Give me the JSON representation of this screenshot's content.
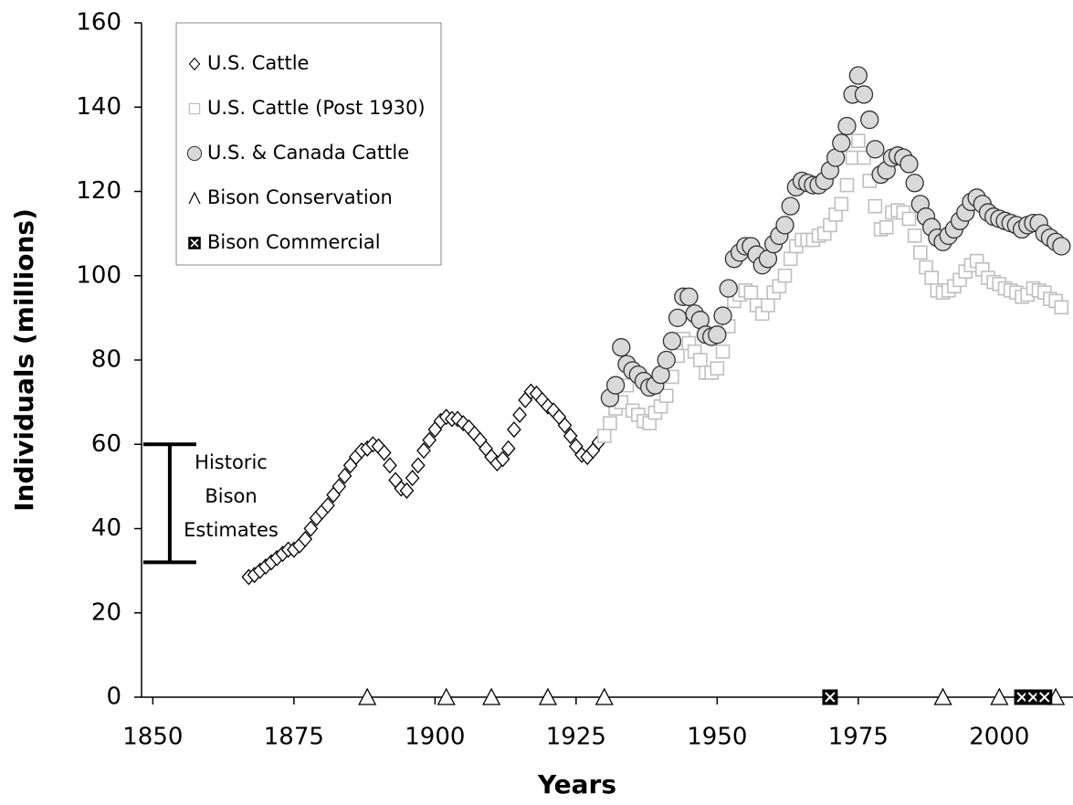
{
  "chart_data": {
    "type": "scatter",
    "x_label": "Years",
    "y_label": "Individuals  (millions)",
    "xlim": [
      1848,
      2012
    ],
    "xticks": [
      1850,
      1875,
      1900,
      1925,
      1950,
      1975,
      2000
    ],
    "ylim": [
      0,
      160
    ],
    "yticks": [
      0,
      20,
      40,
      60,
      80,
      100,
      120,
      140,
      160
    ],
    "legend": "top-left",
    "series": [
      {
        "name": "U.S. Cattle",
        "marker": "diamond",
        "color": "#000000",
        "fill": "#ffffff",
        "x": [
          1867,
          1868,
          1869,
          1870,
          1871,
          1872,
          1873,
          1874,
          1875,
          1876,
          1877,
          1878,
          1879,
          1880,
          1881,
          1882,
          1883,
          1884,
          1885,
          1886,
          1887,
          1888,
          1889,
          1890,
          1891,
          1892,
          1893,
          1894,
          1895,
          1896,
          1897,
          1898,
          1899,
          1900,
          1901,
          1902,
          1903,
          1904,
          1905,
          1906,
          1907,
          1908,
          1909,
          1910,
          1911,
          1912,
          1913,
          1914,
          1915,
          1916,
          1917,
          1918,
          1919,
          1920,
          1921,
          1922,
          1923,
          1924,
          1925,
          1926,
          1927,
          1928,
          1929
        ],
        "values": [
          28.5,
          29,
          30,
          31,
          32,
          33,
          34,
          35,
          35,
          36,
          37.5,
          40,
          42.5,
          44,
          45.5,
          48,
          50,
          52.5,
          55,
          57,
          58.5,
          59,
          60,
          59.5,
          58,
          55,
          51.5,
          49.5,
          49,
          52,
          55,
          58.5,
          61,
          63.5,
          65.5,
          66.5,
          66,
          66,
          65,
          64,
          62.5,
          61,
          59,
          57,
          55.5,
          56.5,
          59,
          63.5,
          67,
          70.5,
          72.5,
          72,
          70.5,
          69,
          68,
          66.5,
          64.5,
          62,
          59.5,
          57.5,
          57,
          58.5,
          60.5
        ]
      },
      {
        "name": "U.S. Cattle (Post 1930)",
        "marker": "square",
        "color": "#bfbfbf",
        "fill": "#ffffff",
        "x": [
          1930,
          1931,
          1932,
          1933,
          1934,
          1935,
          1936,
          1937,
          1938,
          1939,
          1940,
          1941,
          1942,
          1943,
          1944,
          1945,
          1946,
          1947,
          1948,
          1949,
          1950,
          1951,
          1952,
          1953,
          1954,
          1955,
          1956,
          1957,
          1958,
          1959,
          1960,
          1961,
          1962,
          1963,
          1964,
          1965,
          1966,
          1967,
          1968,
          1969,
          1970,
          1971,
          1972,
          1973,
          1974,
          1975,
          1976,
          1977,
          1978,
          1979,
          1980,
          1981,
          1982,
          1983,
          1984,
          1985,
          1986,
          1987,
          1988,
          1989,
          1990,
          1991,
          1992,
          1993,
          1994,
          1995,
          1996,
          1997,
          1998,
          1999,
          2000,
          2001,
          2002,
          2003,
          2004,
          2005,
          2006,
          2007,
          2008,
          2009,
          2010,
          2011
        ],
        "values": [
          62,
          65,
          68.5,
          70,
          74,
          68,
          67,
          65.5,
          65,
          67.5,
          69,
          71.5,
          76,
          81,
          85,
          84,
          82,
          80,
          77,
          77,
          78,
          82,
          88,
          94,
          95.5,
          96.5,
          96,
          93,
          91,
          93,
          96,
          97.5,
          100,
          104,
          107,
          108.5,
          108.5,
          108.5,
          109.5,
          110,
          112,
          114.5,
          117,
          121.5,
          128,
          132,
          128,
          122.5,
          116.5,
          111,
          111.5,
          115,
          115.5,
          115,
          113.5,
          109.5,
          105.5,
          102,
          99.5,
          96.5,
          96,
          96.5,
          97.5,
          99,
          101,
          102.5,
          103.5,
          101.5,
          99.5,
          98.5,
          98,
          97,
          96.5,
          96,
          95,
          95.5,
          97,
          96.5,
          96,
          94.5,
          94,
          92.5
        ]
      },
      {
        "name": "U.S. & Canada Cattle",
        "marker": "circle",
        "color": "#333333",
        "fill": "#d9d9d9",
        "x": [
          1931,
          1932,
          1933,
          1934,
          1935,
          1936,
          1937,
          1938,
          1939,
          1940,
          1941,
          1942,
          1943,
          1944,
          1945,
          1946,
          1947,
          1948,
          1949,
          1950,
          1951,
          1952,
          1953,
          1954,
          1955,
          1956,
          1957,
          1958,
          1959,
          1960,
          1961,
          1962,
          1963,
          1964,
          1965,
          1966,
          1967,
          1968,
          1969,
          1970,
          1971,
          1972,
          1973,
          1974,
          1975,
          1976,
          1977,
          1978,
          1979,
          1980,
          1981,
          1982,
          1983,
          1984,
          1985,
          1986,
          1987,
          1988,
          1989,
          1990,
          1991,
          1992,
          1993,
          1994,
          1995,
          1996,
          1997,
          1998,
          1999,
          2000,
          2001,
          2002,
          2003,
          2004,
          2005,
          2006,
          2007,
          2008,
          2009,
          2010,
          2011
        ],
        "values": [
          71,
          74,
          83,
          79,
          77.5,
          76.5,
          75,
          73.5,
          74,
          76.5,
          80,
          84.5,
          90,
          95,
          95,
          91,
          89.5,
          86,
          85.5,
          86,
          90.5,
          97,
          104,
          105.5,
          107,
          107,
          105,
          102.5,
          104,
          107.5,
          109.5,
          112,
          116.5,
          121,
          122.5,
          122,
          121.5,
          121.5,
          122.5,
          125,
          128,
          131.5,
          135.5,
          143,
          147.5,
          143,
          137,
          130,
          124,
          125,
          128,
          128.5,
          128,
          126.5,
          122,
          117,
          114,
          111.5,
          109,
          108,
          109.5,
          111,
          113,
          115,
          117.5,
          118.5,
          117,
          115,
          114,
          113.5,
          113,
          112.5,
          112,
          111,
          112,
          112.5,
          112.5,
          110,
          109,
          108,
          107
        ]
      },
      {
        "name": "Bison Conservation",
        "marker": "triangle",
        "color": "#000000",
        "fill": "#ffffff",
        "x": [
          1888,
          1902,
          1910,
          1920,
          1930,
          1990,
          2000,
          2010
        ],
        "values": [
          0,
          0,
          0,
          0,
          0,
          0,
          0,
          0
        ]
      },
      {
        "name": "Bison Commercial",
        "marker": "cross-square",
        "color": "#000000",
        "fill": "#000000",
        "x": [
          1970,
          2004,
          2006,
          2008
        ],
        "values": [
          0,
          0,
          0,
          0
        ]
      }
    ],
    "annotation": {
      "lines": [
        "Historic",
        "Bison",
        "Estimates"
      ],
      "x": 1853,
      "low": 32,
      "high": 60
    }
  }
}
